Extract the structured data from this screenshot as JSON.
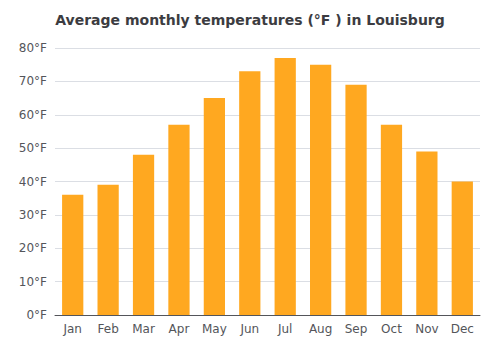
{
  "chart_data": {
    "type": "bar",
    "title": "Average monthly temperatures (°F ) in Louisburg",
    "categories": [
      "Jan",
      "Feb",
      "Mar",
      "Apr",
      "May",
      "Jun",
      "Jul",
      "Aug",
      "Sep",
      "Oct",
      "Nov",
      "Dec"
    ],
    "values": [
      36,
      39,
      48,
      57,
      65,
      73,
      77,
      75,
      69,
      57,
      49,
      40
    ],
    "color": "#FFA820",
    "ylim": [
      0,
      80
    ],
    "yticks": [
      {
        "value": 0,
        "label": "0°F"
      },
      {
        "value": 10,
        "label": "10°F"
      },
      {
        "value": 20,
        "label": "20°F"
      },
      {
        "value": 30,
        "label": "30°F"
      },
      {
        "value": 40,
        "label": "40°F"
      },
      {
        "value": 50,
        "label": "50°F"
      },
      {
        "value": 60,
        "label": "60°F"
      },
      {
        "value": 70,
        "label": "70°F"
      },
      {
        "value": 80,
        "label": "80°F"
      }
    ],
    "grid": true
  }
}
